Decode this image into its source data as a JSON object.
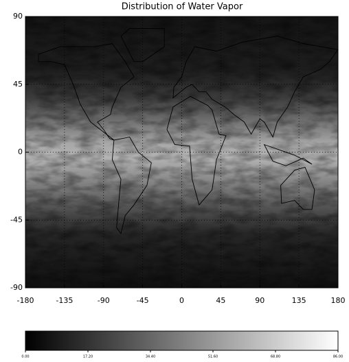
{
  "title": "Distribution of Water Vapor",
  "map": {
    "xlim": [
      -180,
      180
    ],
    "xticks": [
      -180,
      -135,
      -90,
      -45,
      0,
      45,
      90,
      135,
      180
    ],
    "ylim": [
      -90,
      90
    ],
    "yticks": [
      -90,
      -45,
      0,
      45,
      90
    ],
    "grid": true
  },
  "colorbar": {
    "range": [
      0,
      86
    ],
    "ticks": [
      {
        "value": 0,
        "label": "0.00"
      },
      {
        "value": 17.2,
        "label": "17.20"
      },
      {
        "value": 34.4,
        "label": "34.40"
      },
      {
        "value": 51.6,
        "label": "51.60"
      },
      {
        "value": 68.8,
        "label": "68.80"
      },
      {
        "value": 86,
        "label": "86.00"
      }
    ]
  }
}
